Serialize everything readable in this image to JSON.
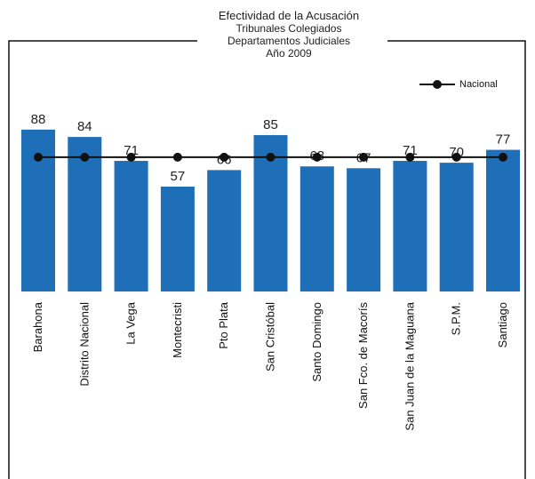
{
  "chart_data": {
    "type": "bar",
    "title": "Efectividad de la Acusación",
    "subtitle": [
      "Tribunales Colegiados",
      "Departamentos Judiciales",
      "Año 2009"
    ],
    "categories": [
      "Barahona",
      "Distrito Nacional",
      "La Vega",
      "Montecristi",
      "Pto Plata",
      "San Cristóbal",
      "Santo Domingo",
      "San Fco. de Macorís",
      "San Juan de la Maguana",
      "S.P.M.",
      "Santiago"
    ],
    "series": [
      {
        "name": "",
        "type": "bar",
        "values": [
          88,
          84,
          71,
          57,
          66,
          85,
          68,
          67,
          71,
          70,
          77
        ]
      },
      {
        "name": "Nacional",
        "type": "line",
        "values": [
          73,
          73,
          73,
          73,
          73,
          73,
          73,
          73,
          73,
          73,
          73
        ]
      }
    ],
    "data_labels": [
      "88",
      "84",
      "71",
      "57",
      "66",
      "85",
      "68",
      "67",
      "71",
      "70",
      "77"
    ],
    "colors": {
      "bar": "#1f6fb8",
      "line": "#111111"
    },
    "legend": {
      "placement": "top-right",
      "entries": [
        "Nacional"
      ]
    },
    "grid": false
  }
}
